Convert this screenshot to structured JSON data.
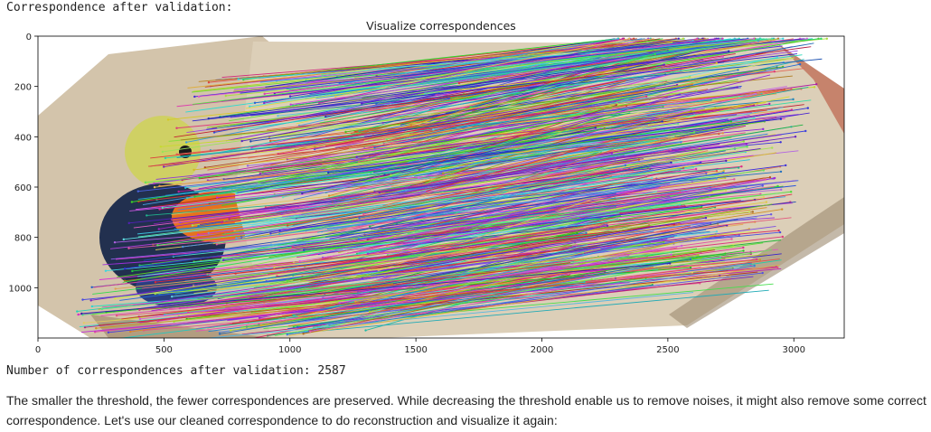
{
  "output": {
    "header": "Correspondence after validation:",
    "count_text": "Number of correspondences after validation: 2587"
  },
  "markdown": {
    "paragraph": "The smaller the threshold, the fewer correspondences are preserved. While decreasing the threshold enable us to remove noises, it might also remove some correct correspondence. Let's use our cleaned correspondence to do reconstruction and visualize it again:"
  },
  "chart_data": {
    "type": "image",
    "title": "Visualize correspondences",
    "xlabel": "",
    "ylabel": "",
    "xlim": [
      0,
      3200
    ],
    "ylim": [
      1200,
      0
    ],
    "xticks": [
      0,
      500,
      1000,
      1500,
      2000,
      2500,
      3000
    ],
    "yticks": [
      0,
      200,
      400,
      600,
      800,
      1000
    ],
    "xtick_labels": [
      "0",
      "500",
      "1000",
      "1500",
      "2000",
      "2500",
      "3000"
    ],
    "ytick_labels": [
      "0",
      "200",
      "400",
      "600",
      "800",
      "1000"
    ],
    "correspondence_count": 2587,
    "grid": false,
    "colors": {
      "stone_light": "#d8cbb4",
      "stone_dark": "#a8957a",
      "bird_orange": "#e8741e",
      "bird_dark": "#1e2a4a",
      "bird_yellow": "#d8d86a"
    }
  }
}
